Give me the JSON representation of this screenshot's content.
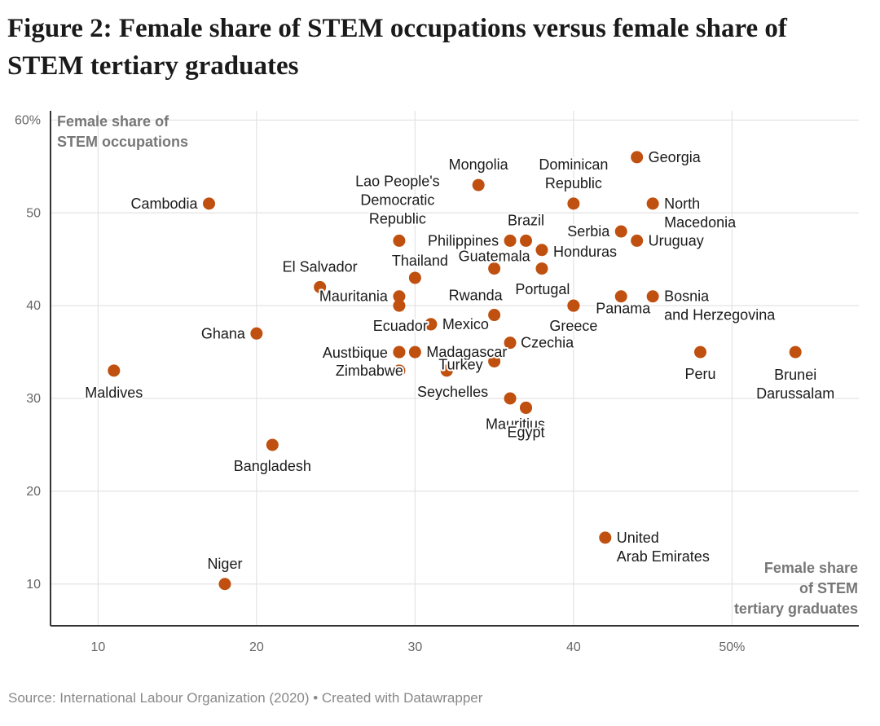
{
  "title": "Figure 2: Female share of STEM occupations versus female share of STEM tertiary graduates",
  "source": "Source: International Labour Organization (2020) • Created with Datawrapper",
  "colors": {
    "point": "#c0500f",
    "grid": "#e3e3e3",
    "axis": "#333333"
  },
  "chart_data": {
    "type": "scatter",
    "xlabel": "Female share of STEM tertiary graduates",
    "ylabel": "Female share of STEM occupations",
    "xlim": [
      7,
      58
    ],
    "ylim": [
      5.5,
      61
    ],
    "x_ticks": [
      10,
      20,
      30,
      40,
      50
    ],
    "x_tick_labels": [
      "10",
      "20",
      "30",
      "40",
      "50%"
    ],
    "y_ticks": [
      10,
      20,
      30,
      40,
      50,
      60
    ],
    "y_tick_labels": [
      "10",
      "20",
      "30",
      "40",
      "50",
      "60%"
    ],
    "grid": true,
    "points": [
      {
        "label": "Georgia",
        "x": 44,
        "y": 56
      },
      {
        "label": "Mongolia",
        "x": 34,
        "y": 53
      },
      {
        "label": "Dominican Republic",
        "x": 40,
        "y": 51
      },
      {
        "label": "North Macedonia",
        "x": 45,
        "y": 51
      },
      {
        "label": "Cambodia",
        "x": 17,
        "y": 51
      },
      {
        "label": "Lao People's Democratic Republic",
        "x": 29,
        "y": 47
      },
      {
        "label": "Philippines",
        "x": 36,
        "y": 47
      },
      {
        "label": "Brazil",
        "x": 37,
        "y": 47
      },
      {
        "label": "Serbia",
        "x": 43,
        "y": 48
      },
      {
        "label": "Uruguay",
        "x": 44,
        "y": 47
      },
      {
        "label": "Honduras",
        "x": 38,
        "y": 46
      },
      {
        "label": "Guatemala",
        "x": 35,
        "y": 44
      },
      {
        "label": "",
        "x": 38,
        "y": 44
      },
      {
        "label": "Thailand",
        "x": 30,
        "y": 43
      },
      {
        "label": "El Salvador",
        "x": 24,
        "y": 42
      },
      {
        "label": "Mauritania",
        "x": 29,
        "y": 41
      },
      {
        "label": "",
        "x": 29,
        "y": 40
      },
      {
        "label": "Portugal",
        "x": 40,
        "y": 40
      },
      {
        "label": "Panama",
        "x": 43,
        "y": 41
      },
      {
        "label": "Bosnia and Herzegovina",
        "x": 45,
        "y": 41
      },
      {
        "label": "Rwanda",
        "x": 35,
        "y": 39
      },
      {
        "label": "Ecuador",
        "x": 31,
        "y": 38
      },
      {
        "label": "Mexico",
        "x": 31,
        "y": 38
      },
      {
        "label": "Greece",
        "x": 40,
        "y": 40
      },
      {
        "label": "Ghana",
        "x": 20,
        "y": 37
      },
      {
        "label": "Czechia",
        "x": 36,
        "y": 36
      },
      {
        "label": "Austria",
        "x": 29,
        "y": 35
      },
      {
        "label": "Mozambique",
        "x": 29,
        "y": 35
      },
      {
        "label": "Madagascar",
        "x": 30,
        "y": 35
      },
      {
        "label": "Turkey",
        "x": 35,
        "y": 34
      },
      {
        "label": "Zimbabwe",
        "x": 29,
        "y": 33
      },
      {
        "label": "",
        "x": 32,
        "y": 33
      },
      {
        "label": "Peru",
        "x": 48,
        "y": 35
      },
      {
        "label": "Brunei Darussalam",
        "x": 54,
        "y": 35
      },
      {
        "label": "Maldives",
        "x": 11,
        "y": 33
      },
      {
        "label": "Seychelles",
        "x": 36,
        "y": 30
      },
      {
        "label": "Mauritius",
        "x": 37,
        "y": 29
      },
      {
        "label": "Egypt",
        "x": 37,
        "y": 29
      },
      {
        "label": "Bangladesh",
        "x": 21,
        "y": 25
      },
      {
        "label": "United Arab Emirates",
        "x": 42,
        "y": 15
      },
      {
        "label": "Niger",
        "x": 18,
        "y": 10
      }
    ]
  }
}
